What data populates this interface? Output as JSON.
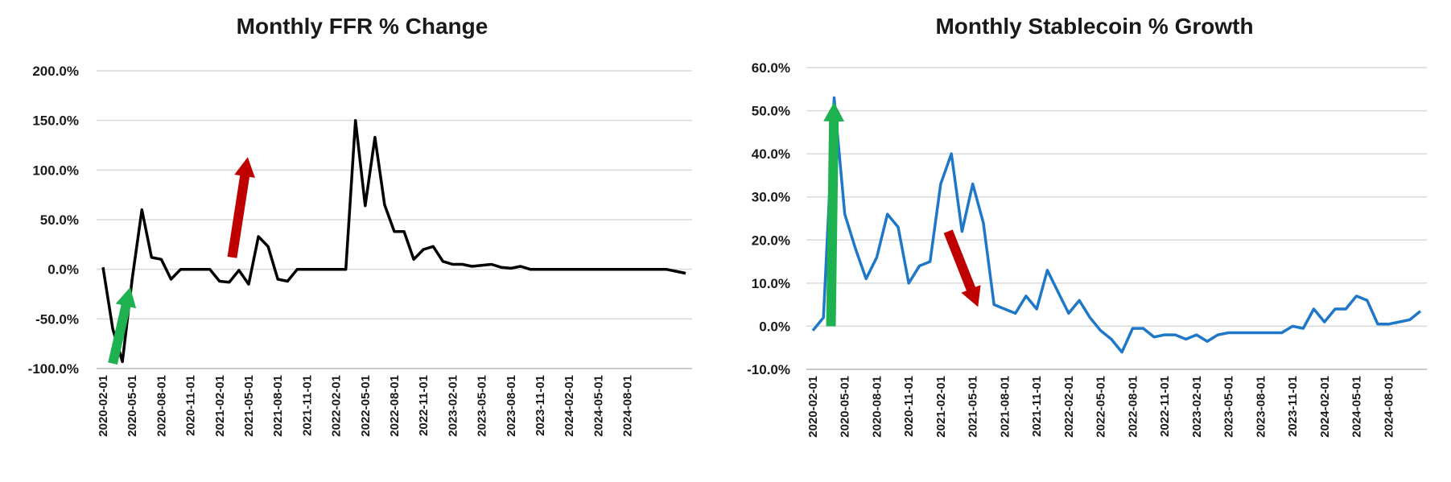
{
  "chart_data": [
    {
      "type": "line",
      "title": "Monthly FFR % Change",
      "xlabel": "",
      "ylabel": "",
      "ylim": [
        -100,
        200
      ],
      "y_ticks": [
        "200.0%",
        "150.0%",
        "100.0%",
        "50.0%",
        "0.0%",
        "-50.0%",
        "-100.0%"
      ],
      "y_tick_values": [
        200,
        150,
        100,
        50,
        0,
        -50,
        -100
      ],
      "x_tick_labels": [
        "2020-02-01",
        "2020-05-01",
        "2020-08-01",
        "2020-11-01",
        "2021-02-01",
        "2021-05-01",
        "2021-08-01",
        "2021-11-01",
        "2022-02-01",
        "2022-05-01",
        "2022-08-01",
        "2022-11-01",
        "2023-02-01",
        "2023-05-01",
        "2023-08-01",
        "2023-11-01",
        "2024-02-01",
        "2024-05-01",
        "2024-08-01"
      ],
      "grid": "horizontal",
      "line_color": "#000000",
      "series": [
        {
          "values": [
            2,
            -60,
            -93,
            -10,
            60,
            12,
            10,
            -10,
            0,
            0,
            0,
            0,
            -12,
            -13,
            -1,
            -15,
            33,
            23,
            -10,
            -12,
            0,
            0,
            0,
            0,
            0,
            0,
            150,
            64,
            133,
            65,
            38,
            38,
            10,
            20,
            23,
            8,
            5,
            5,
            3,
            4,
            5,
            2,
            1,
            3,
            0,
            0,
            0,
            0,
            0,
            0,
            0,
            0,
            0,
            0,
            0,
            0,
            0,
            0,
            0,
            -2,
            -4
          ]
        }
      ],
      "annotations": [
        {
          "type": "arrow",
          "direction": "down",
          "color": "#1eb150"
        },
        {
          "type": "arrow",
          "direction": "up",
          "color": "#c00000"
        }
      ]
    },
    {
      "type": "line",
      "title": "Monthly Stablecoin % Growth",
      "xlabel": "",
      "ylabel": "",
      "ylim": [
        -10,
        60
      ],
      "y_ticks": [
        "60.0%",
        "50.0%",
        "40.0%",
        "30.0%",
        "20.0%",
        "10.0%",
        "0.0%",
        "-10.0%"
      ],
      "y_tick_values": [
        60,
        50,
        40,
        30,
        20,
        10,
        0,
        -10
      ],
      "x_tick_labels": [
        "2020-02-01",
        "2020-05-01",
        "2020-08-01",
        "2020-11-01",
        "2021-02-01",
        "2021-05-01",
        "2021-08-01",
        "2021-11-01",
        "2022-02-01",
        "2022-05-01",
        "2022-08-01",
        "2022-11-01",
        "2023-02-01",
        "2023-05-01",
        "2023-08-01",
        "2023-11-01",
        "2024-02-01",
        "2024-05-01",
        "2024-08-01"
      ],
      "grid": "horizontal",
      "line_color": "#1f77c8",
      "series": [
        {
          "values": [
            -1,
            2,
            53,
            26,
            18,
            11,
            16,
            26,
            23,
            10,
            14,
            15,
            33,
            40,
            22,
            33,
            24,
            5,
            4,
            3,
            7,
            4,
            13,
            8,
            3,
            6,
            2,
            -1,
            -3,
            -6,
            -0.5,
            -0.5,
            -2.5,
            -2,
            -2,
            -3,
            -2,
            -3.5,
            -2,
            -1.5,
            -1.5,
            -1.5,
            -1.5,
            -1.5,
            -1.5,
            0,
            -0.5,
            4,
            1,
            4,
            4,
            7,
            6,
            0.5,
            0.5,
            1,
            1.5,
            3.5
          ]
        }
      ],
      "annotations": [
        {
          "type": "arrow",
          "direction": "up",
          "color": "#1eb150"
        },
        {
          "type": "arrow",
          "direction": "down",
          "color": "#c00000"
        }
      ]
    }
  ]
}
